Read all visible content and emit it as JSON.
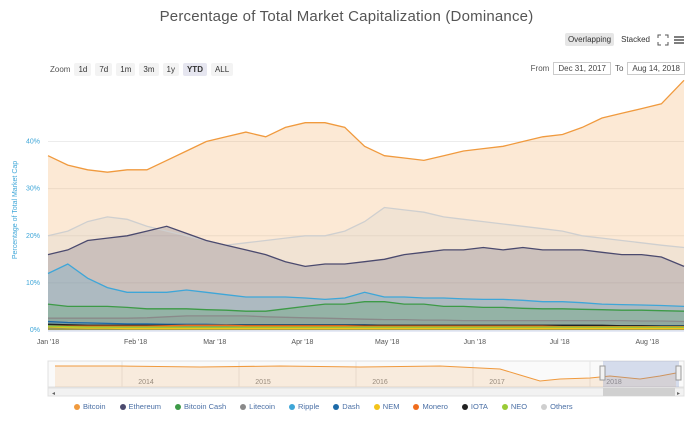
{
  "title": "Percentage of Total Market Capitalization (Dominance)",
  "controls": {
    "overlapping": "Overlapping",
    "stacked": "Stacked",
    "zoom_label": "Zoom",
    "zoom_buttons": [
      "1d",
      "7d",
      "1m",
      "3m",
      "1y",
      "YTD",
      "ALL"
    ],
    "zoom_active": "YTD",
    "from_label": "From",
    "from_value": "Dec 31, 2017",
    "to_label": "To",
    "to_value": "Aug 14, 2018"
  },
  "navigator": {
    "years": [
      "2014",
      "2015",
      "2016",
      "2017",
      "2018"
    ]
  },
  "colors": {
    "Bitcoin": "#f09a3e",
    "Ethereum": "#4b4a6e",
    "Bitcoin Cash": "#3d9a47",
    "Litecoin": "#8a8a8a",
    "Ripple": "#3ea6d8",
    "Dash": "#1c6aa8",
    "NEM": "#f3c319",
    "Monero": "#f06c1c",
    "IOTA": "#222222",
    "NEO": "#9acb36",
    "Others": "#cfcfcf"
  },
  "chart_data": {
    "type": "area",
    "title": "Percentage of Total Market Capitalization (Dominance)",
    "xlabel": "",
    "ylabel": "Percentage of Total Market Cap",
    "ylim": [
      0,
      52
    ],
    "yticks": [
      "0%",
      "10%",
      "20%",
      "30%",
      "40%"
    ],
    "ytick_values": [
      0,
      10,
      20,
      30,
      40
    ],
    "xticks": [
      "Jan '18",
      "Feb '18",
      "Mar '18",
      "Apr '18",
      "May '18",
      "Jun '18",
      "Jul '18",
      "Aug '18"
    ],
    "x": [
      "2018-01-01",
      "2018-01-08",
      "2018-01-15",
      "2018-01-22",
      "2018-01-29",
      "2018-02-05",
      "2018-02-12",
      "2018-02-19",
      "2018-02-26",
      "2018-03-05",
      "2018-03-12",
      "2018-03-19",
      "2018-03-26",
      "2018-04-02",
      "2018-04-09",
      "2018-04-16",
      "2018-04-23",
      "2018-04-30",
      "2018-05-07",
      "2018-05-14",
      "2018-05-21",
      "2018-05-28",
      "2018-06-04",
      "2018-06-11",
      "2018-06-18",
      "2018-06-25",
      "2018-07-02",
      "2018-07-09",
      "2018-07-16",
      "2018-07-23",
      "2018-07-30",
      "2018-08-06",
      "2018-08-14"
    ],
    "legend_position": "bottom",
    "series": [
      {
        "name": "Bitcoin",
        "values": [
          37,
          35,
          34,
          33.5,
          34,
          34,
          36,
          38,
          40,
          41,
          42,
          41,
          43,
          44,
          44,
          43,
          39,
          37,
          36.5,
          36,
          37,
          38,
          38.5,
          39,
          40,
          41,
          41.5,
          43,
          45,
          46,
          47,
          48,
          53
        ]
      },
      {
        "name": "Others",
        "values": [
          20,
          21,
          23,
          24,
          23.5,
          22,
          21,
          20,
          19,
          18,
          18.5,
          19,
          19.5,
          20,
          20,
          21,
          23,
          26,
          25.5,
          25,
          24,
          23.5,
          23,
          22.5,
          22,
          21.5,
          21,
          20,
          19.5,
          19,
          18.5,
          18,
          17.5
        ]
      },
      {
        "name": "Ethereum",
        "values": [
          16,
          17,
          19,
          19.5,
          20,
          21,
          22,
          20.5,
          19,
          18,
          17,
          16,
          14.5,
          13.5,
          14,
          14,
          14.5,
          15,
          16,
          16.5,
          17,
          17,
          17.5,
          17,
          17.5,
          17,
          17,
          17,
          16.5,
          16,
          16,
          15.5,
          13.5
        ]
      },
      {
        "name": "Ripple",
        "values": [
          12,
          14,
          11,
          9,
          8,
          8,
          8,
          8.5,
          8,
          7.5,
          7,
          7,
          7,
          6.8,
          6.5,
          6.8,
          8,
          7,
          7,
          6.8,
          6.8,
          6.6,
          6.5,
          6.5,
          6.3,
          6,
          6,
          5.8,
          5.5,
          5.4,
          5.3,
          5.2,
          5
        ]
      },
      {
        "name": "Bitcoin Cash",
        "values": [
          5.5,
          5,
          5,
          5,
          4.8,
          4.5,
          4.5,
          4.5,
          4.3,
          4.2,
          4,
          4,
          4.5,
          5,
          5.5,
          5.5,
          6,
          6,
          5.5,
          5.5,
          5,
          5,
          4.8,
          4.8,
          4.6,
          4.5,
          4.5,
          4.4,
          4.3,
          4.2,
          4.2,
          4.1,
          4
        ]
      },
      {
        "name": "Litecoin",
        "values": [
          2.5,
          2.5,
          2.5,
          2.5,
          2.5,
          2.6,
          2.8,
          3,
          3,
          3,
          3,
          2.8,
          2.7,
          2.6,
          2.5,
          2.4,
          2.3,
          2.2,
          2.2,
          2.1,
          2.1,
          2,
          2,
          2,
          2,
          2,
          2,
          2,
          2,
          2,
          1.9,
          1.9,
          1.8
        ]
      },
      {
        "name": "Dash",
        "values": [
          1.8,
          1.6,
          1.5,
          1.4,
          1.3,
          1.3,
          1.2,
          1.2,
          1.2,
          1.1,
          1.1,
          1.1,
          1.1,
          1.1,
          1.1,
          1.1,
          1.1,
          1,
          1,
          1,
          1,
          1,
          1,
          1,
          1,
          1,
          1,
          1,
          0.9,
          0.9,
          0.9,
          0.9,
          0.9
        ]
      },
      {
        "name": "IOTA",
        "values": [
          1.2,
          1.1,
          1,
          1,
          1,
          1,
          1,
          1,
          1,
          1,
          1,
          1,
          1,
          1,
          1,
          1,
          1,
          1,
          1,
          1,
          1,
          1,
          1,
          1,
          1,
          1,
          1,
          1,
          1,
          0.9,
          0.9,
          0.8,
          0.8
        ]
      },
      {
        "name": "Monero",
        "values": [
          0.8,
          0.8,
          0.8,
          0.8,
          0.8,
          0.8,
          0.9,
          1,
          1,
          1,
          0.9,
          0.9,
          0.9,
          0.9,
          0.9,
          0.9,
          0.8,
          0.8,
          0.8,
          0.8,
          0.8,
          0.8,
          0.8,
          0.8,
          0.8,
          0.8,
          0.7,
          0.7,
          0.7,
          0.7,
          0.7,
          0.7,
          0.7
        ]
      },
      {
        "name": "NEM",
        "values": [
          0.7,
          0.5,
          0.4,
          0.4,
          0.3,
          0.3,
          0.3,
          0.3,
          0.3,
          0.3,
          0.3,
          0.3,
          0.3,
          0.3,
          0.3,
          0.3,
          0.3,
          0.3,
          0.3,
          0.3,
          0.3,
          0.3,
          0.3,
          0.3,
          0.3,
          0.3,
          0.3,
          0.3,
          0.3,
          0.3,
          0.3,
          0.3,
          0.3
        ]
      },
      {
        "name": "NEO",
        "values": [
          0.8,
          0.7,
          0.6,
          0.6,
          0.6,
          0.6,
          0.6,
          0.6,
          0.6,
          0.6,
          0.6,
          0.6,
          0.6,
          0.6,
          0.6,
          0.6,
          0.6,
          0.6,
          0.6,
          0.6,
          0.6,
          0.6,
          0.6,
          0.6,
          0.6,
          0.6,
          0.6,
          0.6,
          0.6,
          0.6,
          0.6,
          0.6,
          0.6
        ]
      }
    ],
    "legend": [
      "Bitcoin",
      "Ethereum",
      "Bitcoin Cash",
      "Litecoin",
      "Ripple",
      "Dash",
      "NEM",
      "Monero",
      "IOTA",
      "NEO",
      "Others"
    ]
  }
}
